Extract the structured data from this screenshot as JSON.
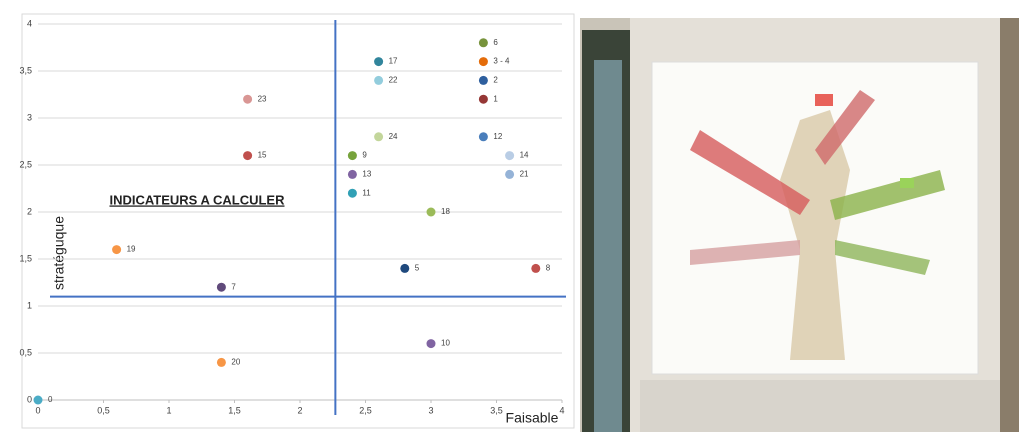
{
  "chart_data": {
    "type": "scatter",
    "title": "INDICATEURS A CALCULER",
    "x_label": "Faisable",
    "y_label": "stratéguque",
    "x": [
      0,
      3.4,
      3.4,
      3.4,
      3.4,
      2.6,
      2.6,
      1.6,
      2.6,
      3.4,
      1.6,
      2.4,
      3.6,
      2.4,
      3.6,
      2.4,
      3.0,
      0.6,
      2.8,
      3.8,
      1.4,
      3.0,
      1.4
    ],
    "values": [
      0,
      3.8,
      3.6,
      3.4,
      3.2,
      3.6,
      3.4,
      3.2,
      2.8,
      2.8,
      2.6,
      2.6,
      2.6,
      2.4,
      2.4,
      2.2,
      2.0,
      1.6,
      1.4,
      1.4,
      1.2,
      0.6,
      0.4
    ],
    "labels": [
      "0",
      "6",
      "3 - 4",
      "2",
      "1",
      "17",
      "22",
      "23",
      "24",
      "12",
      "15",
      "9",
      "14",
      "13",
      "21",
      "11",
      "18",
      "19",
      "5",
      "8",
      "7",
      "10",
      "20"
    ],
    "colors": [
      "#4bacc6",
      "#77933c",
      "#e46c0a",
      "#2e5f9e",
      "#953735",
      "#31859c",
      "#93cddd",
      "#d99694",
      "#c3d69b",
      "#4a7ebb",
      "#c0504d",
      "#77a33c",
      "#b9cde5",
      "#8064a2",
      "#95b3d7",
      "#31a0b5",
      "#9bbb59",
      "#f79646",
      "#1f497d",
      "#c0504d",
      "#604a7b",
      "#8064a2",
      "#f79646"
    ],
    "xlim": [
      0,
      4
    ],
    "ylim": [
      0,
      4
    ],
    "xticks": [
      0,
      {
        "value": 0.5,
        "label": "0,5"
      },
      1,
      {
        "value": 1.5,
        "label": "1,5"
      },
      2,
      {
        "value": 2.5,
        "label": "2,5"
      },
      3,
      {
        "value": 3.5,
        "label": "3,5"
      },
      4
    ],
    "yticks": [
      0,
      {
        "value": 0.5,
        "label": "0,5"
      },
      1,
      {
        "value": 1.5,
        "label": "1,5"
      },
      2,
      {
        "value": 2.5,
        "label": "2,5"
      },
      3,
      {
        "value": 3.5,
        "label": "3,5"
      },
      4
    ],
    "reference_lines": {
      "x": 2.27,
      "y": 1.1,
      "color": "#4472c4"
    },
    "grid": true
  }
}
